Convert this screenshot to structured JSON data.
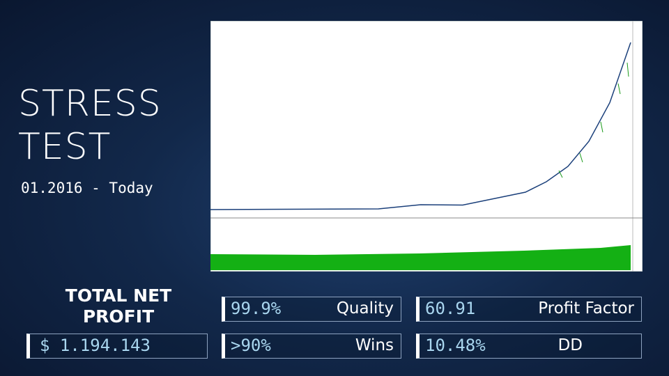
{
  "title": "STRESS TEST",
  "period": "01.2016 - Today",
  "total_net_profit": {
    "label": "TOTAL NET PROFIT",
    "value": "$ 1.194.143"
  },
  "stats": [
    {
      "value": "99.9%",
      "label": "Quality"
    },
    {
      "value": ">90%",
      "label": "Wins"
    },
    {
      "value": "60.91",
      "label": "Profit Factor"
    },
    {
      "value": "10.48%",
      "label": "DD"
    }
  ]
}
